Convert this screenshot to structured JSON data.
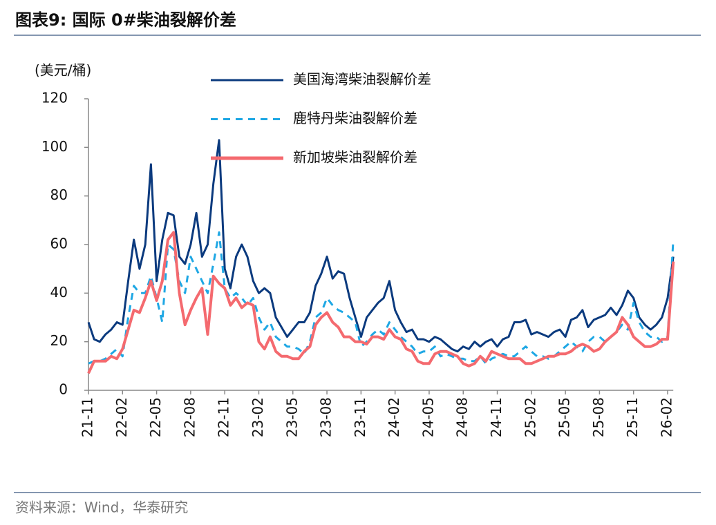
{
  "title": "图表9:  国际 0#柴油裂解价差",
  "source": "资料来源：Wind，华泰研究",
  "chart_data": {
    "type": "line",
    "y_label": "(美元/桶)",
    "categories": [
      "21-11",
      null,
      null,
      null,
      null,
      null,
      "22-02",
      null,
      null,
      null,
      null,
      null,
      "22-05",
      null,
      null,
      null,
      null,
      null,
      "22-08",
      null,
      null,
      null,
      null,
      null,
      "22-11",
      null,
      null,
      null,
      null,
      null,
      "23-02",
      null,
      null,
      null,
      null,
      null,
      "23-05",
      null,
      null,
      null,
      null,
      null,
      "23-08",
      null,
      null,
      null,
      null,
      null,
      "23-11",
      null,
      null,
      null,
      null,
      null,
      "24-02",
      null,
      null,
      null,
      null,
      null,
      "24-05",
      null,
      null,
      null,
      null,
      null,
      "24-08",
      null,
      null,
      null,
      null,
      null,
      "24-11",
      null,
      null,
      null,
      null,
      null,
      "25-02",
      null,
      null,
      null,
      null,
      null,
      "25-05",
      null,
      null,
      null,
      null,
      null,
      "25-08",
      null,
      null,
      null,
      null,
      null,
      "25-11",
      null,
      null,
      null,
      null,
      null,
      "26-02",
      null
    ],
    "series": [
      {
        "name": "美国海湾柴油裂解价差",
        "color": "#0b3a7e",
        "dash": false,
        "values": [
          28,
          21,
          20,
          23,
          25,
          28,
          27,
          45,
          62,
          50,
          60,
          93,
          45,
          62,
          73,
          72,
          55,
          52,
          60,
          73,
          55,
          60,
          85,
          103,
          50,
          42,
          55,
          60,
          55,
          45,
          40,
          42,
          40,
          30,
          26,
          22,
          25,
          28,
          28,
          32,
          43,
          48,
          55,
          46,
          49,
          48,
          38,
          30,
          22,
          30,
          33,
          36,
          38,
          45,
          33,
          28,
          24,
          25,
          21,
          21,
          20,
          22,
          21,
          19,
          17,
          16,
          18,
          17,
          20,
          18,
          20,
          21,
          18,
          21,
          22,
          28,
          28,
          29,
          23,
          24,
          23,
          22,
          24,
          25,
          22,
          29,
          30,
          33,
          26,
          29,
          30,
          31,
          34,
          31,
          35,
          41,
          38,
          30,
          27,
          25,
          27,
          30,
          38,
          55
        ]
      },
      {
        "name": "鹿特丹柴油裂解价差",
        "color": "#1ea7e4",
        "dash": true,
        "values": [
          11,
          12,
          12,
          13,
          15,
          17,
          14,
          30,
          43,
          40,
          40,
          47,
          38,
          28,
          60,
          58,
          45,
          40,
          55,
          50,
          45,
          40,
          52,
          65,
          42,
          38,
          40,
          38,
          35,
          38,
          30,
          25,
          28,
          22,
          20,
          18,
          18,
          17,
          15,
          20,
          30,
          32,
          38,
          35,
          33,
          32,
          30,
          28,
          18,
          20,
          23,
          25,
          23,
          28,
          25,
          22,
          20,
          18,
          15,
          16,
          16,
          18,
          14,
          15,
          14,
          13,
          13,
          12,
          12,
          14,
          11,
          13,
          14,
          15,
          14,
          14,
          16,
          18,
          16,
          14,
          14,
          13,
          14,
          16,
          18,
          20,
          18,
          16,
          20,
          22,
          22,
          20,
          22,
          24,
          27,
          25,
          36,
          28,
          24,
          22,
          22,
          20,
          22,
          62
        ]
      },
      {
        "name": "新加坡柴油裂解价差",
        "color": "#f46a6f",
        "dash": false,
        "values": [
          7,
          12,
          12,
          12,
          14,
          13,
          17,
          25,
          33,
          32,
          38,
          45,
          37,
          45,
          62,
          65,
          40,
          27,
          33,
          38,
          42,
          23,
          47,
          44,
          42,
          35,
          38,
          34,
          36,
          35,
          20,
          17,
          22,
          16,
          14,
          14,
          13,
          13,
          16,
          18,
          27,
          30,
          32,
          28,
          26,
          22,
          22,
          20,
          20,
          19,
          22,
          22,
          21,
          25,
          22,
          21,
          17,
          16,
          12,
          11,
          11,
          15,
          16,
          16,
          15,
          14,
          11,
          10,
          11,
          14,
          12,
          16,
          15,
          14,
          13,
          13,
          13,
          11,
          11,
          12,
          13,
          14,
          14,
          15,
          15,
          16,
          18,
          19,
          18,
          16,
          17,
          20,
          22,
          24,
          30,
          27,
          22,
          20,
          18,
          18,
          19,
          21,
          21,
          53
        ]
      }
    ],
    "ylim": [
      0,
      120
    ],
    "yticks": [
      0,
      20,
      40,
      60,
      80,
      100,
      120
    ],
    "grid": false
  }
}
